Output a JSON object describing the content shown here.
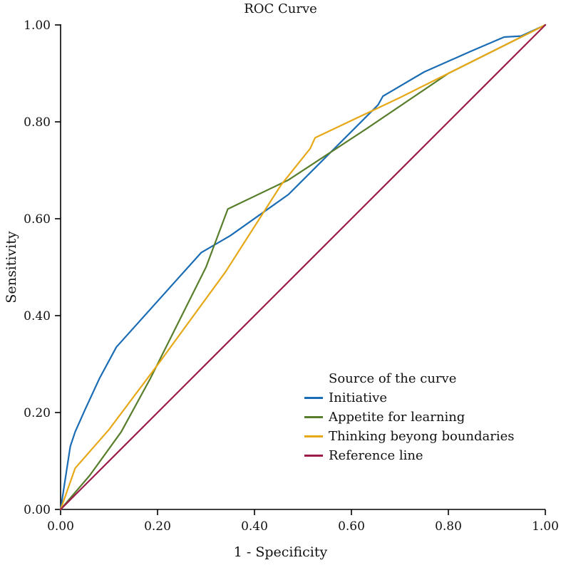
{
  "chart_data": {
    "type": "line",
    "title": "ROC Curve",
    "xlabel": "1 - Specificity",
    "ylabel": "Sensitivity",
    "xlim": [
      0,
      1
    ],
    "ylim": [
      0,
      1
    ],
    "grid": false,
    "legend_position": "inside lower-right",
    "legend_title": "Source of the curve",
    "axis_color": "#000000",
    "xticks": [
      {
        "value": 0.0,
        "label": "0.00"
      },
      {
        "value": 0.2,
        "label": "0.20"
      },
      {
        "value": 0.4,
        "label": "0.40"
      },
      {
        "value": 0.6,
        "label": "0.60"
      },
      {
        "value": 0.8,
        "label": "0.80"
      },
      {
        "value": 1.0,
        "label": "1.00"
      }
    ],
    "yticks": [
      {
        "value": 0.0,
        "label": "0.00"
      },
      {
        "value": 0.2,
        "label": "0.20"
      },
      {
        "value": 0.4,
        "label": "0.40"
      },
      {
        "value": 0.6,
        "label": "0.60"
      },
      {
        "value": 0.8,
        "label": "0.80"
      },
      {
        "value": 1.0,
        "label": "1.00"
      }
    ],
    "series": [
      {
        "name": "Initiative",
        "color": "#1a6cb5",
        "points": [
          [
            0,
            0
          ],
          [
            0.02,
            0.13
          ],
          [
            0.03,
            0.16
          ],
          [
            0.05,
            0.205
          ],
          [
            0.08,
            0.27
          ],
          [
            0.115,
            0.335
          ],
          [
            0.29,
            0.53
          ],
          [
            0.35,
            0.565
          ],
          [
            0.47,
            0.65
          ],
          [
            0.655,
            0.835
          ],
          [
            0.665,
            0.853
          ],
          [
            0.75,
            0.903
          ],
          [
            0.845,
            0.945
          ],
          [
            0.915,
            0.975
          ],
          [
            0.95,
            0.977
          ],
          [
            1,
            1
          ]
        ]
      },
      {
        "name": "Appetite for learning",
        "color": "#587e2c",
        "points": [
          [
            0,
            0
          ],
          [
            0.06,
            0.07
          ],
          [
            0.125,
            0.16
          ],
          [
            0.185,
            0.27
          ],
          [
            0.25,
            0.4
          ],
          [
            0.3,
            0.5
          ],
          [
            0.345,
            0.62
          ],
          [
            0.47,
            0.68
          ],
          [
            0.63,
            0.785
          ],
          [
            0.8,
            0.9
          ],
          [
            1,
            1
          ]
        ]
      },
      {
        "name": "Thinking beyong boundaries",
        "color": "#e6a817",
        "points": [
          [
            0,
            0
          ],
          [
            0.03,
            0.085
          ],
          [
            0.1,
            0.165
          ],
          [
            0.205,
            0.305
          ],
          [
            0.34,
            0.49
          ],
          [
            0.455,
            0.67
          ],
          [
            0.515,
            0.745
          ],
          [
            0.525,
            0.767
          ],
          [
            0.7,
            0.85
          ],
          [
            0.95,
            0.975
          ],
          [
            1,
            1
          ]
        ]
      },
      {
        "name": "Reference line",
        "color": "#9c1b4a",
        "points": [
          [
            0,
            0
          ],
          [
            1,
            1
          ]
        ]
      }
    ]
  }
}
